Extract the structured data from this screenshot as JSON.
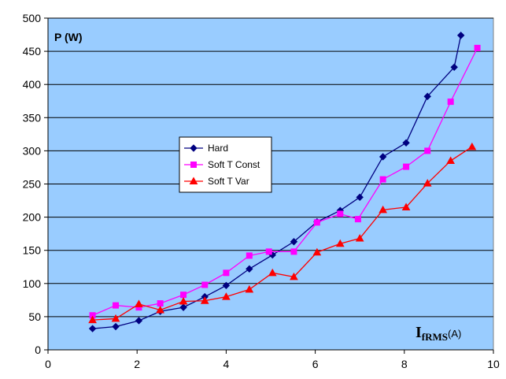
{
  "chart_data": {
    "type": "line",
    "ylabel": "P (W)",
    "xlabel": {
      "main": "I",
      "sub": "fRMS",
      "unit": "(A)"
    },
    "xlim": [
      0,
      10
    ],
    "ylim": [
      0,
      500
    ],
    "xticks": [
      0,
      2,
      4,
      6,
      8,
      10
    ],
    "yticks": [
      0,
      50,
      100,
      150,
      200,
      250,
      300,
      350,
      400,
      450,
      500
    ],
    "grid": "horizontal",
    "legend_position": "center-left",
    "plot_background": "#99ccff",
    "series": [
      {
        "name": "Hard",
        "color": "#000080",
        "marker": "diamond",
        "x": [
          1.0,
          1.52,
          2.04,
          2.52,
          3.04,
          3.52,
          4.0,
          4.52,
          5.04,
          5.52,
          6.04,
          6.56,
          7.0,
          7.52,
          8.04,
          8.52,
          9.12,
          9.27
        ],
        "y": [
          32,
          35,
          44,
          58,
          64,
          80,
          97,
          122,
          143,
          163,
          193,
          210,
          230,
          291,
          312,
          382,
          426,
          474
        ]
      },
      {
        "name": "Soft T Const",
        "color": "#ff00ff",
        "marker": "square",
        "x": [
          1.0,
          1.52,
          2.04,
          2.52,
          3.04,
          3.52,
          4.0,
          4.52,
          4.96,
          5.52,
          6.04,
          6.56,
          6.96,
          7.52,
          8.04,
          8.52,
          9.04,
          9.64
        ],
        "y": [
          52,
          67,
          64,
          70,
          83,
          98,
          116,
          142,
          148,
          148,
          192,
          205,
          197,
          257,
          276,
          300,
          374,
          455
        ]
      },
      {
        "name": "Soft T Var",
        "color": "#ff0000",
        "marker": "triangle",
        "x": [
          1.0,
          1.52,
          2.04,
          2.52,
          3.04,
          3.52,
          4.0,
          4.52,
          5.04,
          5.52,
          6.04,
          6.56,
          7.0,
          7.52,
          8.04,
          8.52,
          9.04,
          9.52
        ],
        "y": [
          45,
          47,
          69,
          60,
          73,
          74,
          80,
          91,
          116,
          110,
          147,
          160,
          168,
          211,
          215,
          251,
          285,
          306
        ]
      }
    ]
  }
}
